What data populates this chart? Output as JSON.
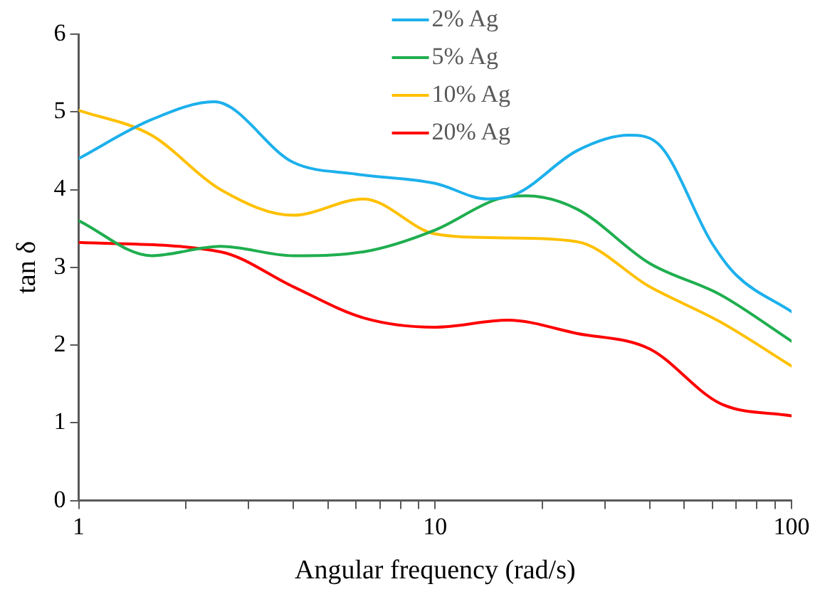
{
  "chart_data": {
    "type": "line",
    "xlabel": "Angular frequency (rad/s)",
    "ylabel": "tan δ",
    "log": "x",
    "xlim": [
      1,
      100
    ],
    "ylim": [
      0,
      6
    ],
    "yticks": [
      0,
      1,
      2,
      3,
      4,
      5,
      6
    ],
    "xticks": [
      1,
      {
        "value": 2,
        "label": null
      },
      {
        "value": 3,
        "label": null
      },
      {
        "value": 4,
        "label": null
      },
      {
        "value": 5,
        "label": null
      },
      {
        "value": 6,
        "label": null
      },
      {
        "value": 7,
        "label": null
      },
      {
        "value": 8,
        "label": null
      },
      {
        "value": 9,
        "label": null
      },
      10,
      {
        "value": 20,
        "label": null
      },
      {
        "value": 30,
        "label": null
      },
      {
        "value": 40,
        "label": null
      },
      {
        "value": 50,
        "label": null
      },
      {
        "value": 60,
        "label": null
      },
      {
        "value": 70,
        "label": null
      },
      {
        "value": 80,
        "label": null
      },
      {
        "value": 90,
        "label": null
      },
      100
    ],
    "grid": false,
    "legend": "top",
    "marker": "none",
    "line_style": "solid",
    "series": [
      {
        "name": "2% Ag",
        "color": "#1cb0ec",
        "x": [
          1,
          1.6,
          2.4,
          4,
          6,
          10,
          14,
          17,
          25,
          35,
          42,
          60,
          70,
          100
        ],
        "values": [
          4.4,
          4.9,
          5.13,
          4.35,
          4.2,
          4.08,
          3.88,
          3.95,
          4.5,
          4.7,
          4.6,
          3.3,
          2.9,
          2.43
        ]
      },
      {
        "name": "5% Ag",
        "color": "#1fae4f",
        "x": [
          1,
          1.6,
          2.5,
          4,
          6.3,
          10,
          15,
          18,
          25,
          40,
          63,
          100
        ],
        "values": [
          3.6,
          3.15,
          3.27,
          3.15,
          3.2,
          3.48,
          3.88,
          3.92,
          3.75,
          3.05,
          2.65,
          2.05
        ]
      },
      {
        "name": "10% Ag",
        "color": "#ffc000",
        "x": [
          1,
          1.6,
          2.5,
          4,
          6.3,
          10,
          15,
          25,
          40,
          63,
          100
        ],
        "values": [
          5.02,
          4.7,
          4.0,
          3.67,
          3.88,
          3.43,
          3.38,
          3.33,
          2.75,
          2.3,
          1.73
        ]
      },
      {
        "name": "20% Ag",
        "color": "#ff0000",
        "x": [
          1,
          2.5,
          4,
          6.3,
          10,
          16,
          25,
          40,
          63,
          100
        ],
        "values": [
          3.32,
          3.2,
          2.75,
          2.35,
          2.23,
          2.32,
          2.15,
          1.95,
          1.25,
          1.09
        ]
      }
    ]
  }
}
